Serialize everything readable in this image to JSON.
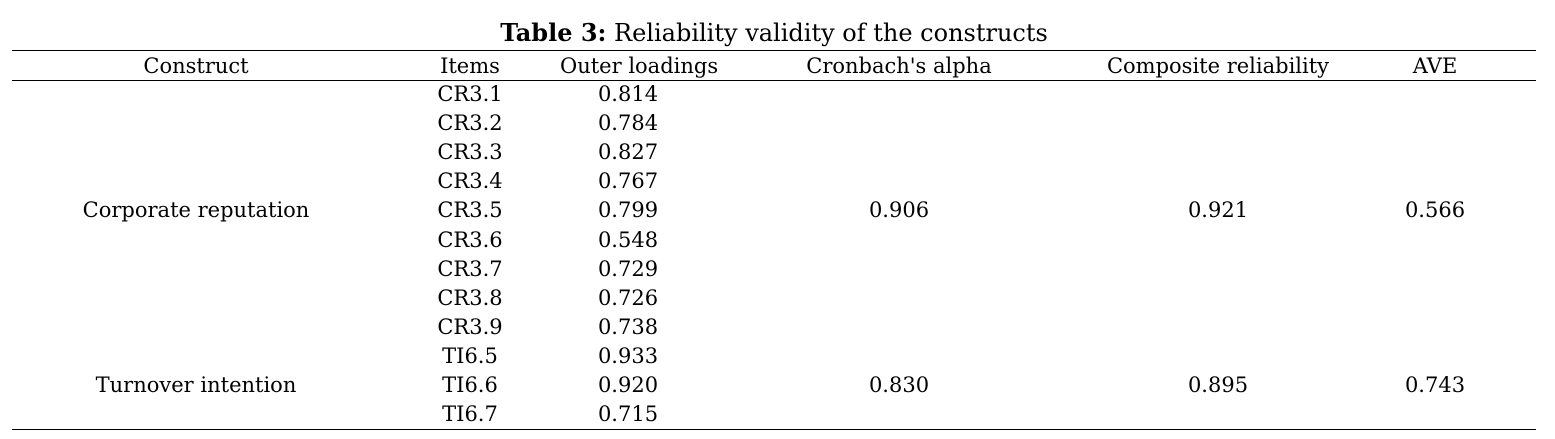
{
  "caption": {
    "label": "Table 3:",
    "text": "Reliability validity of the constructs"
  },
  "columns": [
    "Construct",
    "Items",
    "Outer loadings",
    "Cronbach's alpha",
    "Composite reliability",
    "AVE"
  ],
  "groups": [
    {
      "construct": "Corporate reputation",
      "cronbach_alpha": "0.906",
      "composite_reliability": "0.921",
      "ave": "0.566",
      "items": [
        {
          "item": "CR3.1",
          "loading": "0.814"
        },
        {
          "item": "CR3.2",
          "loading": "0.784"
        },
        {
          "item": "CR3.3",
          "loading": "0.827"
        },
        {
          "item": "CR3.4",
          "loading": "0.767"
        },
        {
          "item": "CR3.5",
          "loading": "0.799"
        },
        {
          "item": "CR3.6",
          "loading": "0.548"
        },
        {
          "item": "CR3.7",
          "loading": "0.729"
        },
        {
          "item": "CR3.8",
          "loading": "0.726"
        },
        {
          "item": "CR3.9",
          "loading": "0.738"
        }
      ]
    },
    {
      "construct": "Turnover intention",
      "cronbach_alpha": "0.830",
      "composite_reliability": "0.895",
      "ave": "0.743",
      "items": [
        {
          "item": "TI6.5",
          "loading": "0.933"
        },
        {
          "item": "TI6.6",
          "loading": "0.920"
        },
        {
          "item": "TI6.7",
          "loading": "0.715"
        }
      ]
    }
  ]
}
